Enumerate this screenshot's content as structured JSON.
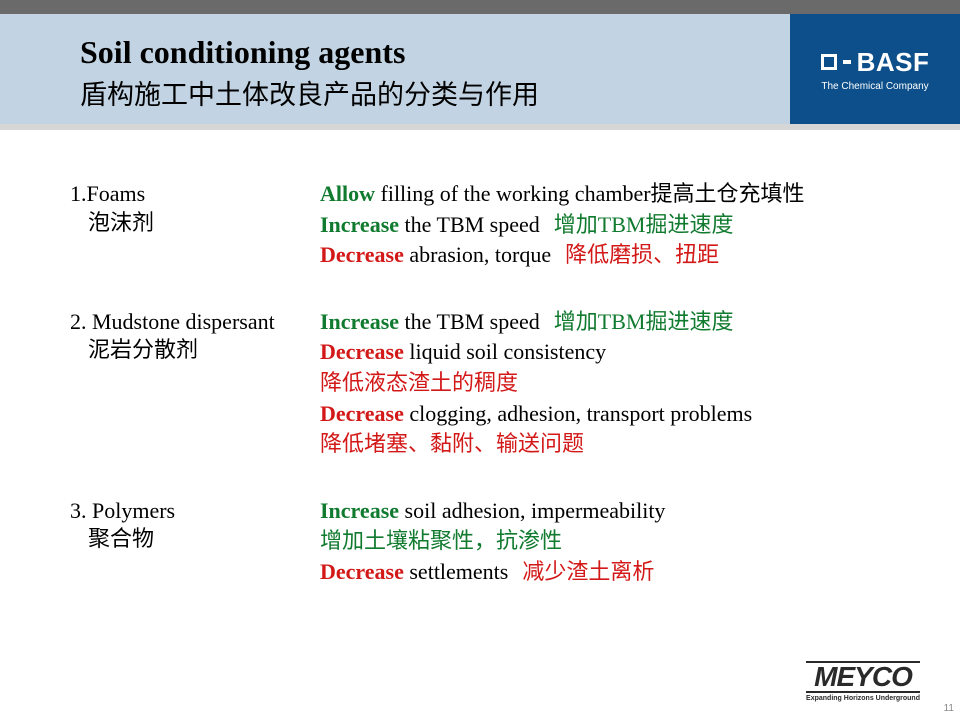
{
  "header": {
    "title_en": "Soil conditioning agents",
    "title_zh": "盾构施工中土体改良产品的分类与作用",
    "brand": "BASF",
    "brand_sub": "The Chemical Company"
  },
  "sections": [
    {
      "label_en": "1.Foams",
      "label_zh": "泡沫剂",
      "lines": [
        {
          "kw": "Allow",
          "kw_class": "kw-allow",
          "en": " filling of the working chamber",
          "zh": "提高土仓充填性",
          "zh_class": ""
        },
        {
          "kw": "Increase",
          "kw_class": "kw-increase",
          "en": " the TBM speed",
          "gap": true,
          "zh": "增加TBM掘进速度",
          "zh_class": "zh-green"
        },
        {
          "kw": "Decrease",
          "kw_class": "kw-decrease",
          "en": " abrasion, torque",
          "gap": true,
          "zh": "降低磨损、扭距",
          "zh_class": "zh-red"
        }
      ]
    },
    {
      "label_en": "2. Mudstone dispersant",
      "label_zh": "泥岩分散剂",
      "lines": [
        {
          "kw": "Increase",
          "kw_class": "kw-increase",
          "en": " the TBM speed",
          "gap": true,
          "zh": "增加TBM掘进速度",
          "zh_class": "zh-green"
        },
        {
          "kw": "Decrease",
          "kw_class": "kw-decrease",
          "en": " liquid soil consistency",
          "zh": "",
          "zh_class": ""
        },
        {
          "kw": "",
          "kw_class": "",
          "en": "",
          "zh": "降低液态渣土的稠度",
          "zh_class": "zh-red"
        },
        {
          "kw": "Decrease",
          "kw_class": "kw-decrease",
          "en": " clogging, adhesion, transport problems",
          "zh": "",
          "zh_class": ""
        },
        {
          "kw": "",
          "kw_class": "",
          "en": "",
          "zh": "降低堵塞、黏附、输送问题",
          "zh_class": "zh-red"
        }
      ]
    },
    {
      "label_en": "3. Polymers",
      "label_zh": "聚合物",
      "lines": [
        {
          "kw": "Increase",
          "kw_class": "kw-increase",
          "en": " soil adhesion, impermeability",
          "zh": "",
          "zh_class": ""
        },
        {
          "kw": "",
          "kw_class": "",
          "en": "",
          "zh": "增加土壤粘聚性，抗渗性",
          "zh_class": "zh-green"
        },
        {
          "kw": "Decrease",
          "kw_class": "kw-decrease",
          "en": " settlements",
          "gap": true,
          "zh": "减少渣土离析",
          "zh_class": "zh-red"
        }
      ]
    }
  ],
  "footer": {
    "logo": "MEYCO",
    "logo_sub": "Expanding Horizons Underground",
    "page": "11"
  },
  "colors": {
    "header_bg": "#c2d4e3",
    "brand_bg": "#0d4f8b",
    "increase": "#107a2e",
    "decrease": "#d31818"
  }
}
